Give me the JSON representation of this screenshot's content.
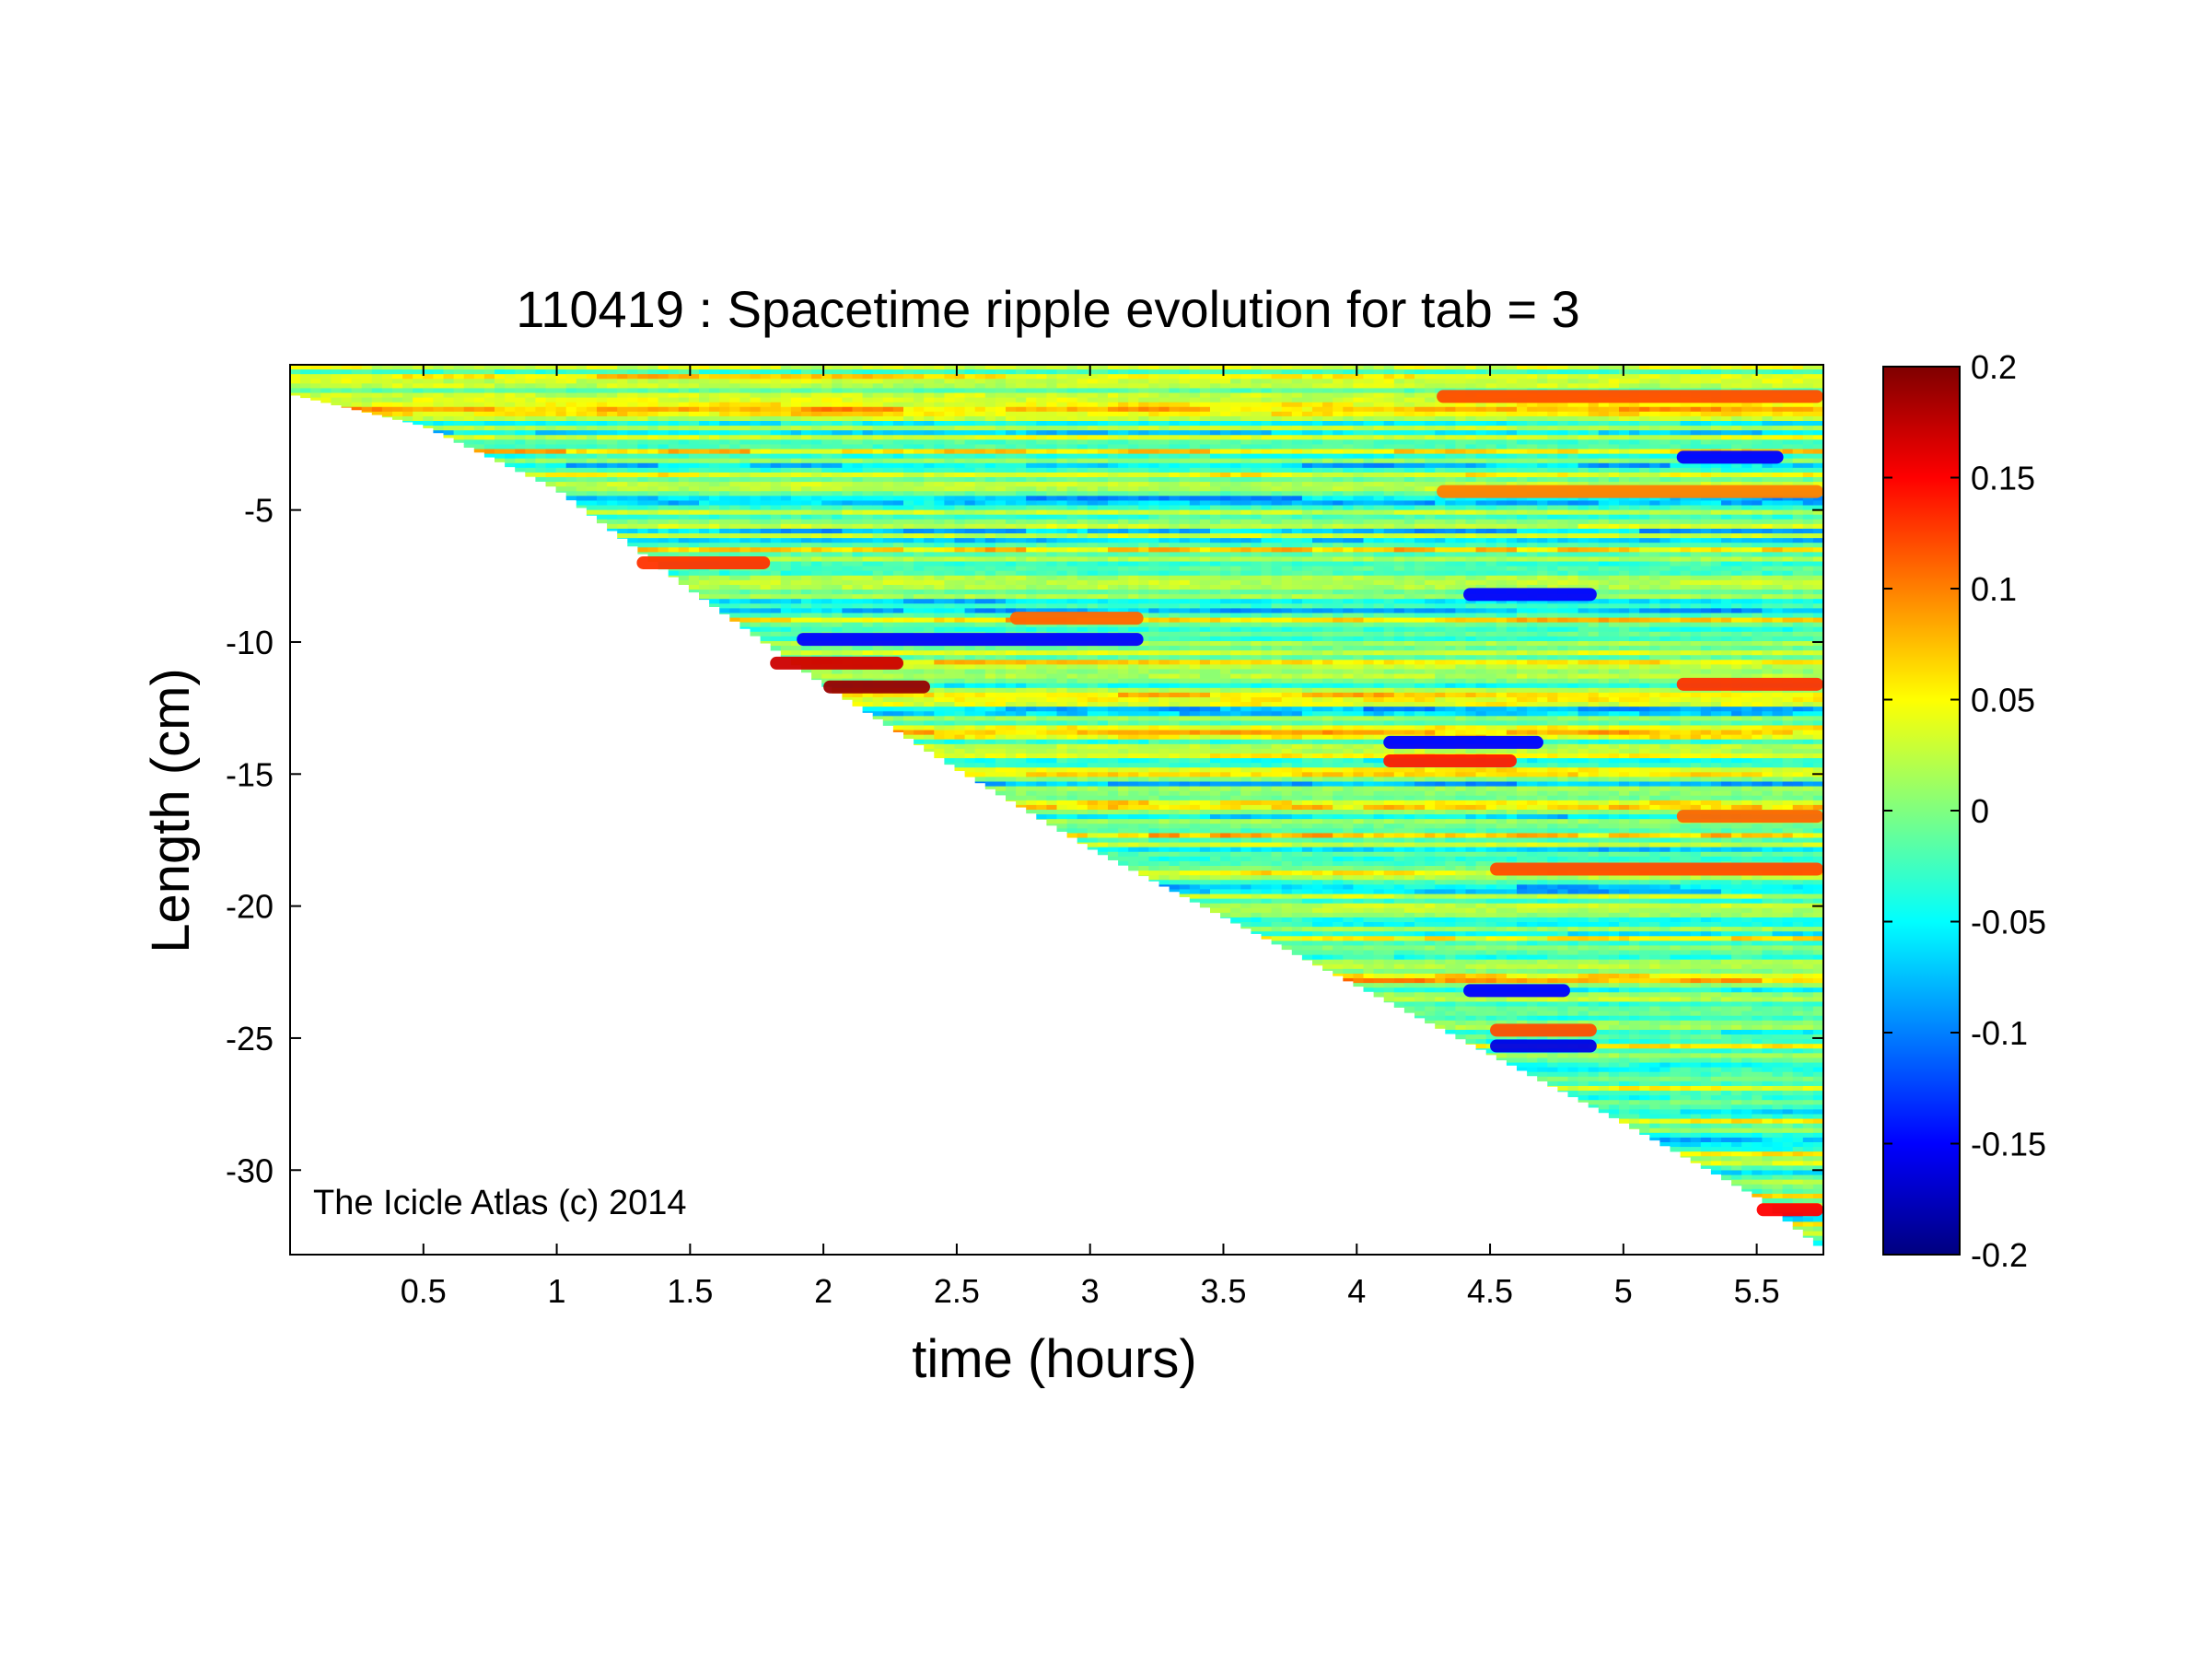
{
  "chart_data": {
    "type": "heatmap",
    "title": "110419 : Spacetime ripple evolution for tab = 3",
    "xlabel": "time (hours)",
    "ylabel": "Length (cm)",
    "xlim": [
      0,
      5.75
    ],
    "ylim": [
      -33.2,
      0.5
    ],
    "x_ticks": [
      0.5,
      1,
      1.5,
      2,
      2.5,
      3,
      3.5,
      4,
      4.5,
      5,
      5.5
    ],
    "x_tick_labels": [
      "0.5",
      "1",
      "1.5",
      "2",
      "2.5",
      "3",
      "3.5",
      "4",
      "4.5",
      "5",
      "5.5"
    ],
    "y_ticks": [
      -5,
      -10,
      -15,
      -20,
      -25,
      -30
    ],
    "y_tick_labels": [
      "-5",
      "-10",
      "-15",
      "-20",
      "-25",
      "-30"
    ],
    "colormap": "jet",
    "clim": [
      -0.2,
      0.2
    ],
    "colorbar_ticks": [
      0.2,
      0.15,
      0.1,
      0.05,
      0,
      -0.05,
      -0.1,
      -0.15,
      -0.2
    ],
    "colorbar_tick_labels": [
      "0.2",
      "0.15",
      "0.1",
      "0.05",
      "0",
      "-0.05",
      "-0.1",
      "-0.15",
      "-0.2"
    ],
    "colorbar_position": "right",
    "grid": false,
    "annotation": "The Icicle Atlas (c) 2014",
    "valid_region_boundary": [
      {
        "x": 0.0,
        "y": -0.6
      },
      {
        "x": 0.5,
        "y": -1.8
      },
      {
        "x": 1.0,
        "y": -4.2
      },
      {
        "x": 1.5,
        "y": -8.0
      },
      {
        "x": 2.0,
        "y": -11.6
      },
      {
        "x": 2.5,
        "y": -14.8
      },
      {
        "x": 3.0,
        "y": -17.8
      },
      {
        "x": 3.5,
        "y": -20.4
      },
      {
        "x": 4.0,
        "y": -23.0
      },
      {
        "x": 4.5,
        "y": -25.6
      },
      {
        "x": 5.0,
        "y": -28.2
      },
      {
        "x": 5.5,
        "y": -31.0
      },
      {
        "x": 5.75,
        "y": -33.0
      }
    ],
    "features": [
      {
        "x0": 4.3,
        "x1": 5.75,
        "y": -0.7,
        "value": 0.12
      },
      {
        "x0": 5.2,
        "x1": 5.6,
        "y": -3.0,
        "value": -0.15
      },
      {
        "x0": 4.3,
        "x1": 5.75,
        "y": -4.3,
        "value": 0.1
      },
      {
        "x0": 1.3,
        "x1": 1.8,
        "y": -7.0,
        "value": 0.13
      },
      {
        "x0": 4.4,
        "x1": 4.9,
        "y": -8.2,
        "value": -0.15
      },
      {
        "x0": 2.7,
        "x1": 3.2,
        "y": -9.1,
        "value": 0.11
      },
      {
        "x0": 1.9,
        "x1": 3.2,
        "y": -9.9,
        "value": -0.15
      },
      {
        "x0": 1.8,
        "x1": 2.3,
        "y": -10.8,
        "value": 0.17
      },
      {
        "x0": 2.0,
        "x1": 2.4,
        "y": -11.7,
        "value": 0.19
      },
      {
        "x0": 5.2,
        "x1": 5.75,
        "y": -11.6,
        "value": 0.13
      },
      {
        "x0": 4.1,
        "x1": 4.7,
        "y": -13.8,
        "value": -0.15
      },
      {
        "x0": 4.1,
        "x1": 4.6,
        "y": -14.5,
        "value": 0.14
      },
      {
        "x0": 5.2,
        "x1": 5.75,
        "y": -16.6,
        "value": 0.11
      },
      {
        "x0": 4.5,
        "x1": 5.75,
        "y": -18.6,
        "value": 0.12
      },
      {
        "x0": 4.4,
        "x1": 4.8,
        "y": -23.2,
        "value": -0.15
      },
      {
        "x0": 4.5,
        "x1": 4.9,
        "y": -24.7,
        "value": 0.12
      },
      {
        "x0": 4.5,
        "x1": 4.9,
        "y": -25.3,
        "value": -0.16
      },
      {
        "x0": 5.5,
        "x1": 5.75,
        "y": -31.5,
        "value": 0.15
      }
    ]
  }
}
